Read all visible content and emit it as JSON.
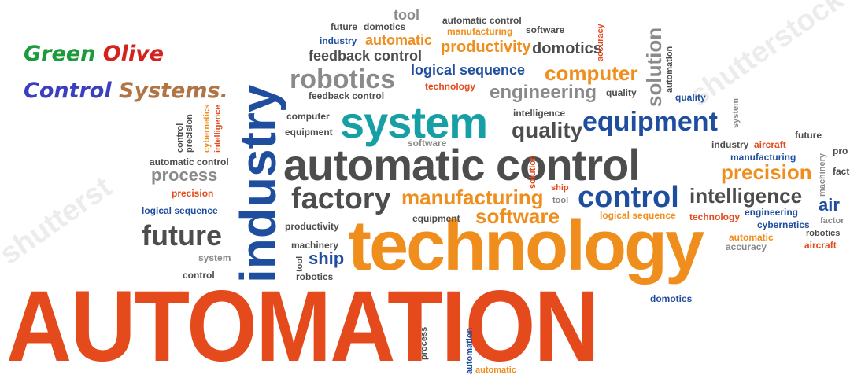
{
  "brand": {
    "line1_a": "Green",
    "line1_b": "Olive",
    "line2_a": "Control",
    "line2_b": "Systems."
  },
  "colors": {
    "gray": "#4d4d4d",
    "teal": "#179fa6",
    "blue": "#1f4e9e",
    "orange": "#ef8e1d",
    "red": "#e44a1c",
    "brand_green": "#1d9a3b",
    "brand_red": "#d4231f",
    "brand_blue": "#3b3fbf",
    "brand_brown": "#b07445"
  },
  "words": {
    "automation": "AUTOMATION",
    "technology": "technology",
    "automatic_control": "automatic control",
    "industry": "industry",
    "system": "system",
    "robotics": "robotics",
    "factory": "factory",
    "manufacturing": "manufacturing",
    "software": "software",
    "control": "control",
    "equipment": "equipment",
    "computer": "computer",
    "engineering": "engineering",
    "intelligence": "intelligence",
    "precision": "precision",
    "future": "future",
    "process": "process",
    "productivity": "productivity",
    "domotics": "domotics",
    "feedback_control": "feedback control",
    "logical_sequence": "logical sequence",
    "quality": "quality",
    "solution": "solution",
    "ship": "ship",
    "tool": "tool",
    "automatic": "automatic",
    "machinery": "machinery",
    "accuracy": "accuracy",
    "aircraft": "aircraft",
    "cybernetics": "cybernetics",
    "technology_small": "technology",
    "industry_small": "industry",
    "future_small": "future",
    "automatic_control_small": "automatic control",
    "manufacturing_small": "manufacturing",
    "software_small": "software",
    "productivity_small": "productivity",
    "control_small": "control",
    "system_small": "system",
    "robotics_small": "robotics",
    "equipment_small": "equipment",
    "computer_small": "computer",
    "precision_small": "precision",
    "domotics_small": "domotics",
    "quality_small": "quality",
    "feedback_control_small": "feedback control",
    "logical_sequence_small": "logical sequence",
    "intelligence_small": "intelligence",
    "process_small": "process",
    "automation_small": "automation",
    "engineering_small": "engineering",
    "tool_small": "tool",
    "ship_small": "ship",
    "aircraft_small": "aircraft",
    "air_clip": "air",
    "fact_clip": "fact",
    "factor_clip": "factor",
    "pro_clip": "pro",
    "machinery_v": "machinery",
    "solution_small": "solution",
    "accuracy_v": "accuracy",
    "cybernetics_v": "cybernetics",
    "intelligence_v": "intelligence",
    "precision_v": "precision",
    "control_v": "control",
    "automatic_v": "automatic"
  },
  "watermark": {
    "text1": "shutterstock",
    "text2": "shutterst"
  }
}
